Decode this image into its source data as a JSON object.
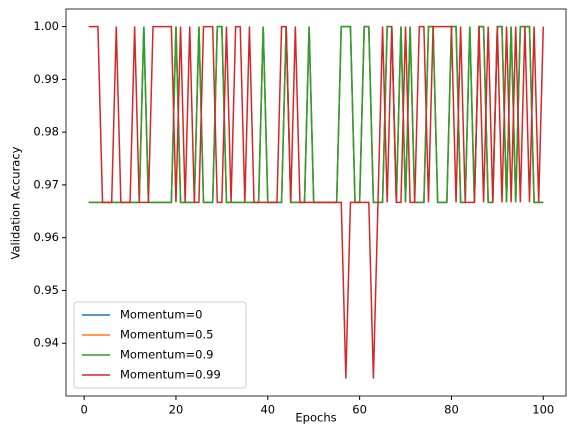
{
  "chart_data": {
    "type": "line",
    "xlabel": "Epochs",
    "ylabel": "Validation Accuracy",
    "x": [
      1,
      2,
      3,
      4,
      5,
      6,
      7,
      8,
      9,
      10,
      11,
      12,
      13,
      14,
      15,
      16,
      17,
      18,
      19,
      20,
      21,
      22,
      23,
      24,
      25,
      26,
      27,
      28,
      29,
      30,
      31,
      32,
      33,
      34,
      35,
      36,
      37,
      38,
      39,
      40,
      41,
      42,
      43,
      44,
      45,
      46,
      47,
      48,
      49,
      50,
      51,
      52,
      53,
      54,
      55,
      56,
      57,
      58,
      59,
      60,
      61,
      62,
      63,
      64,
      65,
      66,
      67,
      68,
      69,
      70,
      71,
      72,
      73,
      74,
      75,
      76,
      77,
      78,
      79,
      80,
      81,
      82,
      83,
      84,
      85,
      86,
      87,
      88,
      89,
      90,
      91,
      92,
      93,
      94,
      95,
      96,
      97,
      98,
      99,
      100
    ],
    "series": [
      {
        "name": "Momentum=0",
        "color": "#1f77b4",
        "values": [
          0.9667,
          0.9667,
          0.9667,
          0.9667,
          0.9667,
          0.9667,
          0.9667,
          0.9667,
          0.9667,
          0.9667,
          0.9667,
          0.9667,
          1,
          0.9667,
          0.9667,
          0.9667,
          0.9667,
          0.9667,
          0.9667,
          1,
          0.9667,
          0.9667,
          0.9667,
          0.9667,
          1,
          0.9667,
          0.9667,
          0.9667,
          1,
          1,
          0.9667,
          0.9667,
          0.9667,
          0.9667,
          0.9667,
          0.9667,
          0.9667,
          0.9667,
          1,
          0.9667,
          0.9667,
          0.9667,
          0.9667,
          1,
          0.9667,
          0.9667,
          0.9667,
          0.9667,
          1,
          0.9667,
          0.9667,
          0.9667,
          0.9667,
          0.9667,
          0.9667,
          1,
          1,
          1,
          0.9667,
          0.9667,
          1,
          1,
          0.9667,
          0.9667,
          0.9667,
          1,
          1,
          0.9667,
          1,
          0.9667,
          1,
          0.9667,
          0.9667,
          0.9667,
          1,
          1,
          0.9667,
          0.9667,
          0.9667,
          1,
          1,
          0.9667,
          0.9667,
          1,
          0.9667,
          1,
          1,
          0.9667,
          0.9667,
          1,
          1,
          0.9667,
          1,
          0.9667,
          1,
          1,
          1,
          0.9667,
          0.9667,
          0.9667
        ]
      },
      {
        "name": "Momentum=0.5",
        "color": "#ff7f0e",
        "values": [
          0.9667,
          0.9667,
          0.9667,
          0.9667,
          0.9667,
          0.9667,
          0.9667,
          0.9667,
          0.9667,
          0.9667,
          0.9667,
          0.9667,
          1,
          0.9667,
          0.9667,
          0.9667,
          0.9667,
          0.9667,
          0.9667,
          1,
          0.9667,
          0.9667,
          0.9667,
          0.9667,
          1,
          0.9667,
          0.9667,
          0.9667,
          1,
          1,
          0.9667,
          0.9667,
          0.9667,
          0.9667,
          0.9667,
          0.9667,
          0.9667,
          0.9667,
          1,
          0.9667,
          0.9667,
          0.9667,
          0.9667,
          1,
          0.9667,
          0.9667,
          0.9667,
          0.9667,
          1,
          0.9667,
          0.9667,
          0.9667,
          0.9667,
          0.9667,
          0.9667,
          1,
          1,
          1,
          0.9667,
          0.9667,
          1,
          1,
          0.9667,
          0.9667,
          0.9667,
          1,
          1,
          0.9667,
          1,
          0.9667,
          1,
          0.9667,
          0.9667,
          0.9667,
          1,
          1,
          0.9667,
          0.9667,
          0.9667,
          1,
          1,
          0.9667,
          0.9667,
          1,
          0.9667,
          1,
          1,
          0.9667,
          0.9667,
          1,
          1,
          0.9667,
          1,
          0.9667,
          1,
          1,
          1,
          0.9667,
          0.9667,
          0.9667
        ]
      },
      {
        "name": "Momentum=0.9",
        "color": "#2ca02c",
        "values": [
          0.9667,
          0.9667,
          0.9667,
          0.9667,
          0.9667,
          0.9667,
          0.9667,
          0.9667,
          0.9667,
          0.9667,
          0.9667,
          0.9667,
          1,
          0.9667,
          0.9667,
          0.9667,
          0.9667,
          0.9667,
          0.9667,
          1,
          0.9667,
          0.9667,
          0.9667,
          0.9667,
          1,
          0.9667,
          0.9667,
          0.9667,
          1,
          1,
          0.9667,
          0.9667,
          0.9667,
          0.9667,
          0.9667,
          0.9667,
          0.9667,
          0.9667,
          1,
          0.9667,
          0.9667,
          0.9667,
          0.9667,
          1,
          0.9667,
          0.9667,
          0.9667,
          0.9667,
          1,
          0.9667,
          0.9667,
          0.9667,
          0.9667,
          0.9667,
          0.9667,
          1,
          1,
          1,
          0.9667,
          0.9667,
          1,
          1,
          0.9667,
          0.9667,
          0.9667,
          1,
          1,
          0.9667,
          1,
          0.9667,
          1,
          0.9667,
          0.9667,
          0.9667,
          1,
          1,
          0.9667,
          0.9667,
          0.9667,
          1,
          1,
          0.9667,
          0.9667,
          1,
          0.9667,
          1,
          1,
          0.9667,
          0.9667,
          1,
          1,
          0.9667,
          1,
          0.9667,
          1,
          1,
          1,
          0.9667,
          0.9667,
          0.9667
        ]
      },
      {
        "name": "Momentum=0.99",
        "color": "#d62728",
        "values": [
          1,
          1,
          1,
          0.9667,
          0.9667,
          0.9667,
          1,
          0.9667,
          0.9667,
          0.9667,
          1,
          0.9667,
          0.9667,
          0.9667,
          1,
          1,
          1,
          1,
          1,
          0.9667,
          1,
          0.9667,
          1,
          0.9667,
          0.9667,
          1,
          1,
          1,
          0.9667,
          0.9667,
          1,
          0.9667,
          1,
          1,
          0.9667,
          1,
          0.9667,
          0.9667,
          0.9667,
          0.9667,
          0.9667,
          0.9667,
          1,
          1,
          0.9667,
          1,
          0.9667,
          0.9667,
          0.9667,
          0.9667,
          0.9667,
          0.9667,
          0.9667,
          0.9667,
          0.9667,
          0.9667,
          0.9333,
          0.9667,
          0.9667,
          0.9667,
          0.9667,
          0.9667,
          0.9333,
          0.9667,
          1,
          0.9667,
          1,
          0.9667,
          0.9667,
          1,
          0.9667,
          0.9667,
          1,
          1,
          0.9667,
          1,
          1,
          1,
          1,
          1,
          0.9667,
          1,
          0.9667,
          0.9667,
          0.9667,
          1,
          0.9667,
          1,
          0.9667,
          1,
          0.9667,
          1,
          0.9667,
          1,
          0.9667,
          1,
          0.9667,
          1,
          0.9667,
          1
        ]
      }
    ],
    "xlim": [
      -3.95,
      104.95
    ],
    "xticks": [
      0,
      20,
      40,
      60,
      80,
      100
    ],
    "ylim": [
      0.93,
      1.00333
    ],
    "yticks": [
      0.94,
      0.95,
      0.96,
      0.97,
      0.98,
      0.99,
      {
        "value": 1,
        "label": "1.00"
      }
    ],
    "legend": "lower left",
    "grid": false
  }
}
